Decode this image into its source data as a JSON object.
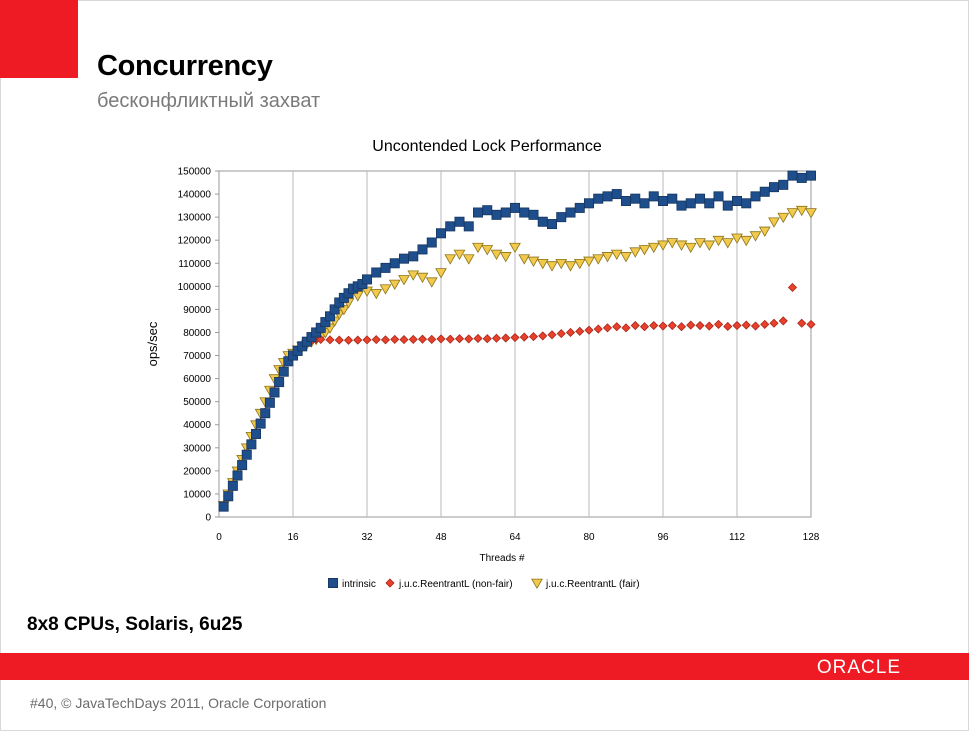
{
  "slide": {
    "title": "Concurrency",
    "subtitle": "бесконфликтный захват",
    "note": "8x8 CPUs, Solaris, 6u25",
    "logo_text": "ORACLE",
    "footer": "#40, © JavaTechDays 2011, Oracle Corporation",
    "accent_color": "#ee1b24"
  },
  "chart_data": {
    "type": "scatter",
    "title": "Uncontended Lock Performance",
    "xlabel": "Threads #",
    "ylabel": "ops/sec",
    "xlim": [
      0,
      128
    ],
    "ylim": [
      0,
      150000
    ],
    "xticks": [
      0,
      16,
      32,
      48,
      64,
      80,
      96,
      112,
      128
    ],
    "yticks": [
      0,
      10000,
      20000,
      30000,
      40000,
      50000,
      60000,
      70000,
      80000,
      90000,
      100000,
      110000,
      120000,
      130000,
      140000,
      150000
    ],
    "grid": "vertical",
    "legend_position": "bottom",
    "series": [
      {
        "name": "intrinsic",
        "color": "#1f4e8c",
        "marker": "square",
        "x": [
          1,
          2,
          3,
          4,
          5,
          6,
          7,
          8,
          9,
          10,
          11,
          12,
          13,
          14,
          15,
          16,
          17,
          18,
          19,
          20,
          21,
          22,
          23,
          24,
          25,
          26,
          27,
          28,
          29,
          30,
          31,
          32,
          34,
          36,
          38,
          40,
          42,
          44,
          46,
          48,
          50,
          52,
          54,
          56,
          58,
          60,
          62,
          64,
          66,
          68,
          70,
          72,
          74,
          76,
          78,
          80,
          82,
          84,
          86,
          88,
          90,
          92,
          94,
          96,
          98,
          100,
          102,
          104,
          106,
          108,
          110,
          112,
          114,
          116,
          118,
          120,
          122,
          124,
          126,
          128
        ],
        "y": [
          4500,
          9000,
          13500,
          18000,
          22500,
          27000,
          31500,
          36000,
          40500,
          45000,
          49500,
          54000,
          58500,
          63000,
          67500,
          70000,
          72000,
          74000,
          76000,
          78000,
          80000,
          82000,
          84500,
          87000,
          90000,
          93000,
          95000,
          97000,
          99000,
          100000,
          101000,
          103000,
          106000,
          108000,
          110000,
          112000,
          113000,
          116000,
          119000,
          123000,
          126000,
          128000,
          126000,
          132000,
          133000,
          131000,
          132000,
          134000,
          132000,
          131000,
          128000,
          127000,
          130000,
          132000,
          134000,
          136000,
          138000,
          139000,
          140000,
          137000,
          138000,
          136000,
          139000,
          137000,
          138000,
          135000,
          136000,
          138000,
          136000,
          139000,
          135000,
          137000,
          136000,
          139000,
          141000,
          143000,
          144000,
          148000,
          147000,
          148000
        ]
      },
      {
        "name": "j.u.c.ReentrantL (non-fair)",
        "color": "#e8402a",
        "marker": "diamond",
        "x": [
          1,
          2,
          3,
          4,
          5,
          6,
          7,
          8,
          9,
          10,
          11,
          12,
          13,
          14,
          15,
          16,
          17,
          18,
          19,
          20,
          21,
          22,
          24,
          26,
          28,
          30,
          32,
          34,
          36,
          38,
          40,
          42,
          44,
          46,
          48,
          50,
          52,
          54,
          56,
          58,
          60,
          62,
          64,
          66,
          68,
          70,
          72,
          74,
          76,
          78,
          80,
          82,
          84,
          86,
          88,
          90,
          92,
          94,
          96,
          98,
          100,
          102,
          104,
          106,
          108,
          110,
          112,
          114,
          116,
          118,
          120,
          122,
          124,
          126,
          128
        ],
        "y": [
          5000,
          9500,
          14000,
          18500,
          23000,
          27500,
          32000,
          36500,
          41000,
          45500,
          50000,
          54500,
          59000,
          63500,
          68000,
          70000,
          72000,
          74000,
          75500,
          76500,
          77000,
          77000,
          76800,
          76700,
          76600,
          76700,
          76800,
          76900,
          76800,
          77000,
          76900,
          77000,
          77100,
          77000,
          77200,
          77100,
          77300,
          77200,
          77400,
          77300,
          77500,
          77600,
          77800,
          78000,
          78200,
          78500,
          79000,
          79500,
          80000,
          80500,
          81000,
          81500,
          82000,
          82500,
          82000,
          83000,
          82500,
          83000,
          82800,
          83000,
          82500,
          83200,
          83000,
          82800,
          83500,
          82600,
          83000,
          83200,
          82800,
          83500,
          84000,
          85000,
          99500,
          84000,
          83500
        ]
      },
      {
        "name": "j.u.c.ReentrantL (fair)",
        "color": "#f2c94c",
        "marker": "triangle-down",
        "x": [
          1,
          2,
          3,
          4,
          5,
          6,
          7,
          8,
          9,
          10,
          11,
          12,
          13,
          14,
          15,
          16,
          17,
          18,
          19,
          20,
          21,
          22,
          23,
          24,
          25,
          26,
          27,
          28,
          30,
          32,
          34,
          36,
          38,
          40,
          42,
          44,
          46,
          48,
          50,
          52,
          54,
          56,
          58,
          60,
          62,
          64,
          66,
          68,
          70,
          72,
          74,
          76,
          78,
          80,
          82,
          84,
          86,
          88,
          90,
          92,
          94,
          96,
          98,
          100,
          102,
          104,
          106,
          108,
          110,
          112,
          114,
          116,
          118,
          120,
          122,
          124,
          126,
          128
        ],
        "y": [
          5000,
          10000,
          15000,
          20000,
          25000,
          30000,
          35000,
          40000,
          45000,
          50000,
          55000,
          60000,
          64000,
          67000,
          70000,
          71000,
          72500,
          74000,
          75000,
          76000,
          77000,
          78000,
          80000,
          82000,
          85000,
          88000,
          90000,
          93000,
          96000,
          98000,
          97000,
          99000,
          101000,
          103000,
          105000,
          104000,
          102000,
          106000,
          112000,
          114000,
          112000,
          117000,
          116000,
          114000,
          113000,
          117000,
          112000,
          111000,
          110000,
          109000,
          110000,
          109000,
          110000,
          111000,
          112000,
          113000,
          114000,
          113000,
          115000,
          116000,
          117000,
          118000,
          119000,
          118000,
          117000,
          119000,
          118000,
          120000,
          119000,
          121000,
          120000,
          122000,
          124000,
          128000,
          130000,
          132000,
          133000,
          132000
        ]
      }
    ]
  }
}
